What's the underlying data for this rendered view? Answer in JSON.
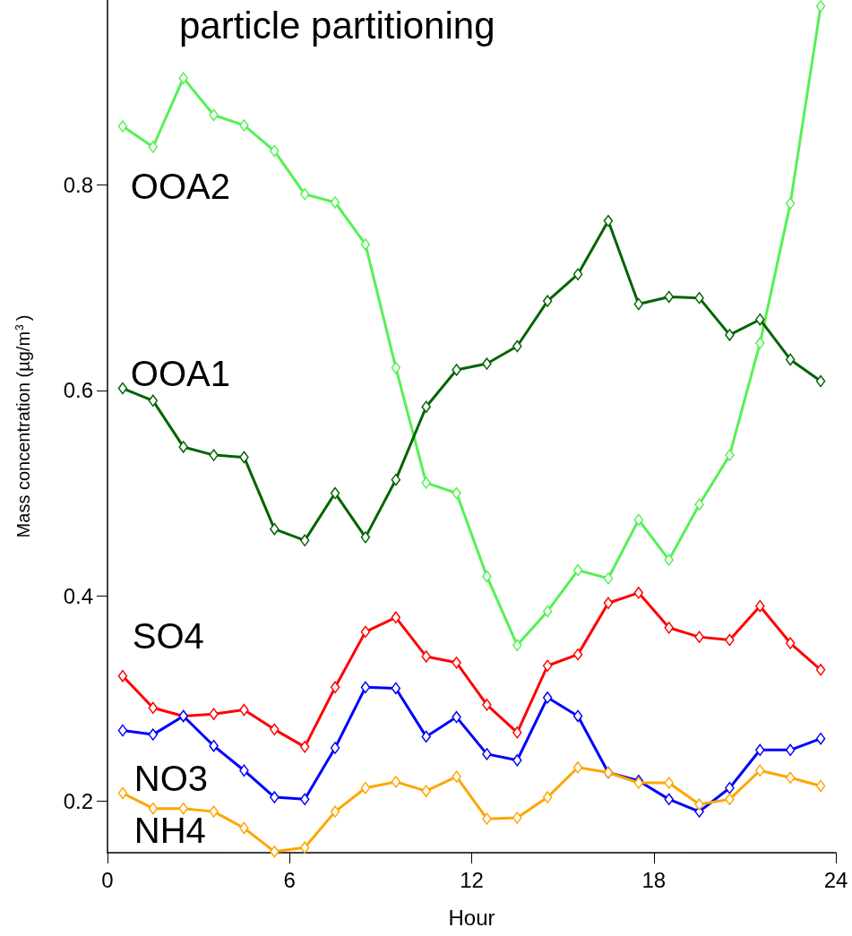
{
  "chart_data": {
    "type": "line",
    "title": "particle partitioning",
    "xlabel": "Hour",
    "ylabel": "Mass concentration (µg/m$^{3}$)",
    "x": [
      0.5,
      1.5,
      2.5,
      3.5,
      4.5,
      5.5,
      6.5,
      7.5,
      8.5,
      9.5,
      10.5,
      11.5,
      12.5,
      13.5,
      14.5,
      15.5,
      16.5,
      17.5,
      18.5,
      19.5,
      20.5,
      21.5,
      22.5,
      23.5
    ],
    "xlim": [
      0,
      24
    ],
    "xticks": [
      0,
      6,
      12,
      18,
      24
    ],
    "ylim": [
      0.15,
      0.98
    ],
    "yticks": [
      0.2,
      0.4,
      0.6,
      0.8
    ],
    "grid": false,
    "legend": false,
    "marker": "diamond",
    "line_style": "solid",
    "series": [
      {
        "name": "OOA2",
        "color": "#55f055",
        "values": [
          0.857,
          0.837,
          0.904,
          0.868,
          0.858,
          0.833,
          0.791,
          0.783,
          0.742,
          0.622,
          0.51,
          0.5,
          0.419,
          0.352,
          0.385,
          0.425,
          0.417,
          0.474,
          0.435,
          0.489,
          0.537,
          0.646,
          0.782,
          0.974
        ]
      },
      {
        "name": "OOA1",
        "color": "#006400",
        "values": [
          0.602,
          0.59,
          0.545,
          0.537,
          0.535,
          0.465,
          0.454,
          0.5,
          0.457,
          0.513,
          0.584,
          0.62,
          0.626,
          0.643,
          0.687,
          0.713,
          0.765,
          0.684,
          0.691,
          0.69,
          0.654,
          0.669,
          0.63,
          0.609
        ]
      },
      {
        "name": "SO4",
        "color": "#ff0000",
        "values": [
          0.322,
          0.291,
          0.283,
          0.285,
          0.289,
          0.27,
          0.253,
          0.311,
          0.365,
          0.379,
          0.341,
          0.335,
          0.294,
          0.267,
          0.332,
          0.343,
          0.393,
          0.403,
          0.369,
          0.36,
          0.357,
          0.39,
          0.354,
          0.328
        ]
      },
      {
        "name": "NO3",
        "color": "#0000ff",
        "values": [
          0.269,
          0.265,
          0.283,
          0.254,
          0.23,
          0.204,
          0.202,
          0.252,
          0.311,
          0.31,
          0.263,
          0.282,
          0.246,
          0.24,
          0.301,
          0.283,
          0.228,
          0.22,
          0.202,
          0.19,
          0.213,
          0.25,
          0.25,
          0.261
        ]
      },
      {
        "name": "NH4",
        "color": "#ffa500",
        "values": [
          0.208,
          0.193,
          0.193,
          0.19,
          0.174,
          0.151,
          0.155,
          0.19,
          0.213,
          0.219,
          0.21,
          0.224,
          0.183,
          0.184,
          0.204,
          0.233,
          0.228,
          0.218,
          0.218,
          0.197,
          0.202,
          0.23,
          0.223,
          0.215
        ]
      }
    ]
  }
}
